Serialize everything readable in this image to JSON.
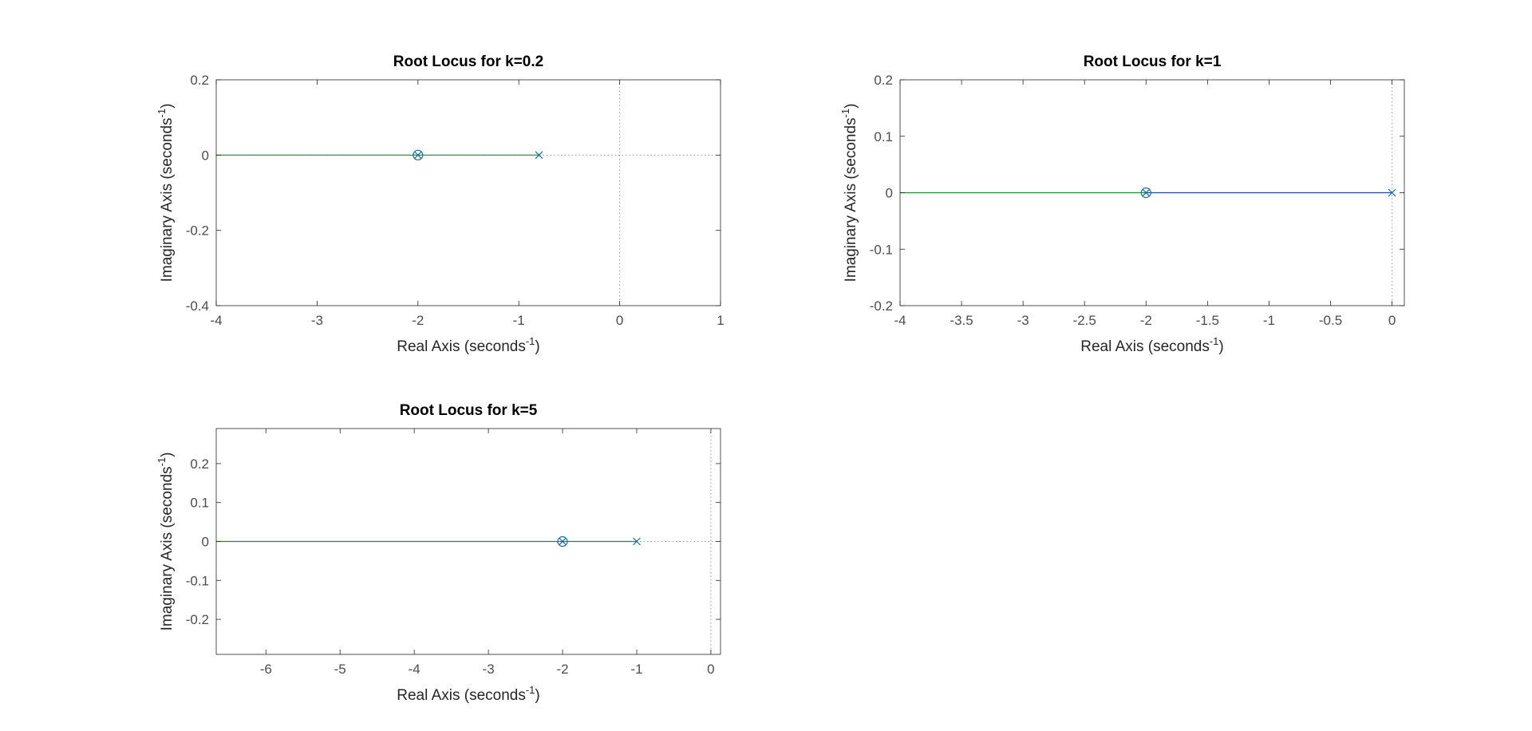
{
  "figure": {
    "background": "#ffffff",
    "axes_color": "#262626",
    "tick_label_color": "#4d4d4d",
    "grid": false
  },
  "chart_data": [
    {
      "type": "line",
      "title": "Root Locus for k=0.2",
      "xlabel": "Real Axis (seconds",
      "xlabel_sup": "-1",
      "xlabel_close": ")",
      "ylabel": "Imaginary Axis (seconds",
      "ylabel_sup": "-1",
      "ylabel_close": ")",
      "xlim": [
        -4,
        1
      ],
      "ylim": [
        -0.4,
        0.2
      ],
      "xticks": [
        -4,
        -3,
        -2,
        -1,
        0,
        1
      ],
      "xtick_labels": [
        "-4",
        "-3",
        "-2",
        "-1",
        "0",
        "1"
      ],
      "yticks": [
        -0.4,
        -0.2,
        0,
        0.2
      ],
      "ytick_labels": [
        "-0.4",
        "-0.2",
        "0",
        "0.2"
      ],
      "zero_guides": {
        "x": true,
        "y": true
      },
      "series": [
        {
          "x": [
            -0.8,
            -2.0
          ],
          "y": [
            0,
            0
          ],
          "color": "#1f8a3a"
        },
        {
          "x": [
            -2.0,
            -4.0
          ],
          "y": [
            0,
            0
          ],
          "color": "#1f8a3a"
        }
      ],
      "poles": [
        {
          "x": -0.8,
          "y": 0
        }
      ],
      "zeros": [
        {
          "x": -2.0,
          "y": 0
        }
      ],
      "marker_color": "#1a6aa0"
    },
    {
      "type": "line",
      "title": "Root Locus for k=1",
      "xlabel": "Real Axis (seconds",
      "xlabel_sup": "-1",
      "xlabel_close": ")",
      "ylabel": "Imaginary Axis (seconds",
      "ylabel_sup": "-1",
      "ylabel_close": ")",
      "xlim": [
        -4,
        0.1
      ],
      "ylim": [
        -0.2,
        0.2
      ],
      "xticks": [
        -4,
        -3.5,
        -3,
        -2.5,
        -2,
        -1.5,
        -1,
        -0.5,
        0
      ],
      "xtick_labels": [
        "-4",
        "-3.5",
        "-3",
        "-2.5",
        "-2",
        "-1.5",
        "-1",
        "-0.5",
        "0"
      ],
      "yticks": [
        -0.2,
        -0.1,
        0,
        0.1,
        0.2
      ],
      "ytick_labels": [
        "-0.2",
        "-0.1",
        "0",
        "0.1",
        "0.2"
      ],
      "zero_guides": {
        "x": true,
        "y": false
      },
      "series": [
        {
          "x": [
            0,
            -2.0
          ],
          "y": [
            0,
            0
          ],
          "color": "#2c3ea8"
        },
        {
          "x": [
            -2.0,
            -4.0
          ],
          "y": [
            0,
            0
          ],
          "color": "#1f8a3a"
        }
      ],
      "poles": [
        {
          "x": 0,
          "y": 0
        }
      ],
      "zeros": [
        {
          "x": -2.0,
          "y": 0
        }
      ],
      "marker_color": "#1a6aa0"
    },
    {
      "type": "line",
      "title": "Root Locus for k=5",
      "xlabel": "Real Axis (seconds",
      "xlabel_sup": "-1",
      "xlabel_close": ")",
      "ylabel": "Imaginary Axis (seconds",
      "ylabel_sup": "-1",
      "ylabel_close": ")",
      "xlim": [
        -6.67,
        0.13
      ],
      "ylim": [
        -0.29,
        0.29
      ],
      "xticks": [
        -6,
        -5,
        -4,
        -3,
        -2,
        -1,
        0
      ],
      "xtick_labels": [
        "-6",
        "-5",
        "-4",
        "-3",
        "-2",
        "-1",
        "0"
      ],
      "yticks": [
        -0.2,
        -0.1,
        0,
        0.1,
        0.2
      ],
      "ytick_labels": [
        "-0.2",
        "-0.1",
        "0",
        "0.1",
        "0.2"
      ],
      "zero_guides": {
        "x": true,
        "y": true
      },
      "series": [
        {
          "x": [
            -1.0,
            -2.0
          ],
          "y": [
            0,
            0
          ],
          "color": "#1f8a3a"
        },
        {
          "x": [
            -2.0,
            -6.67
          ],
          "y": [
            0,
            0
          ],
          "color": "#1f8a3a"
        }
      ],
      "poles": [
        {
          "x": -1.0,
          "y": 0
        }
      ],
      "zeros": [
        {
          "x": -2.0,
          "y": 0
        }
      ],
      "marker_color": "#1a6aa0"
    }
  ]
}
